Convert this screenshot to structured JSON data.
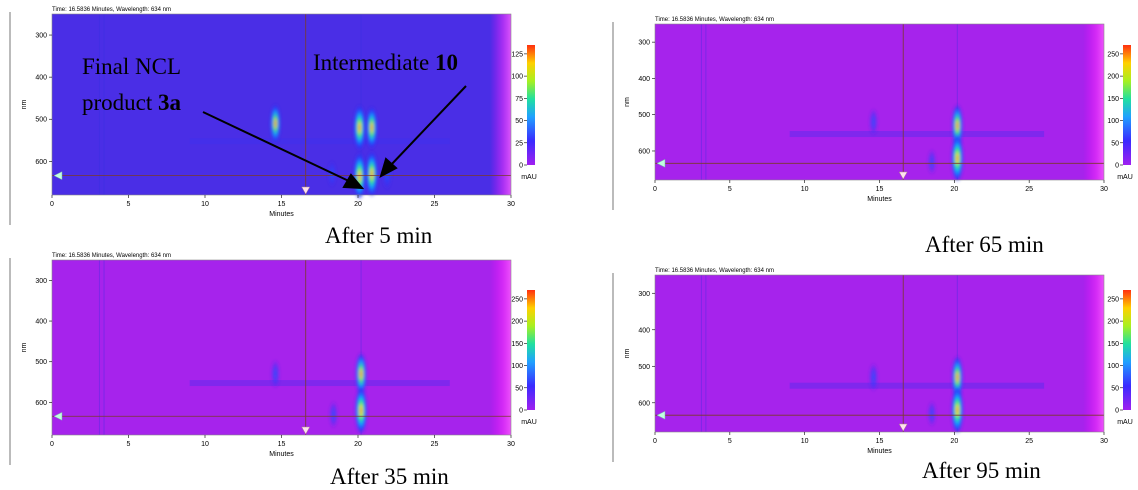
{
  "figure": {
    "header": "Time: 16.5836 Minutes, Wavelength: 634 nm",
    "xlabel": "Minutes",
    "ylabel": "nm",
    "unit_label": "mAU"
  },
  "annotations": {
    "final_label_line1": "Final NCL",
    "final_label_line2_text": "product ",
    "final_label_line2_bold": "3a",
    "intermediate_text": "Intermediate ",
    "intermediate_bold": "10"
  },
  "chart_data": [
    {
      "type": "heatmap",
      "caption": "After 5 min",
      "header": "Time: 16.5836 Minutes, Wavelength: 634 nm",
      "xlabel": "Minutes",
      "ylabel": "nm",
      "xlim": [
        0,
        30
      ],
      "ylim": [
        250,
        680
      ],
      "x_ticks": [
        0,
        5,
        10,
        15,
        20,
        25,
        30
      ],
      "y_ticks": [
        300,
        400,
        500,
        600
      ],
      "cursor_time_min": 16.5836,
      "cursor_wavelength_nm": 634,
      "colorbar_ticks": [
        0,
        25,
        50,
        75,
        100,
        125
      ],
      "colorbar_unit": "mAU",
      "background": "#4a2ee6",
      "peaks": [
        {
          "time": 14.6,
          "nm": 510,
          "intensity": 0.75
        },
        {
          "time": 20.1,
          "nm": 520,
          "intensity": 0.95
        },
        {
          "time": 20.1,
          "nm": 635,
          "intensity": 1.0
        },
        {
          "time": 20.9,
          "nm": 520,
          "intensity": 0.85
        },
        {
          "time": 20.9,
          "nm": 630,
          "intensity": 0.95
        },
        {
          "time": 21.9,
          "nm": 630,
          "intensity": 0.5
        },
        {
          "time": 18.3,
          "nm": 630,
          "intensity": 0.35
        }
      ]
    },
    {
      "type": "heatmap",
      "caption": "After 65 min",
      "header": "Time: 16.5836 Minutes, Wavelength: 634 nm",
      "xlabel": "Minutes",
      "ylabel": "nm",
      "xlim": [
        0,
        30
      ],
      "ylim": [
        250,
        680
      ],
      "x_ticks": [
        0,
        5,
        10,
        15,
        20,
        25,
        30
      ],
      "y_ticks": [
        300,
        400,
        500,
        600
      ],
      "cursor_time_min": 16.5836,
      "cursor_wavelength_nm": 634,
      "colorbar_ticks": [
        0,
        50,
        100,
        150,
        200,
        250
      ],
      "colorbar_unit": "mAU",
      "background": "#a623ec",
      "peaks": [
        {
          "time": 14.6,
          "nm": 520,
          "intensity": 0.35
        },
        {
          "time": 20.2,
          "nm": 530,
          "intensity": 0.85
        },
        {
          "time": 20.2,
          "nm": 620,
          "intensity": 1.0
        },
        {
          "time": 18.5,
          "nm": 630,
          "intensity": 0.3
        }
      ]
    },
    {
      "type": "heatmap",
      "caption": "After 35 min",
      "header": "Time: 16.5836 Minutes, Wavelength: 634 nm",
      "xlabel": "Minutes",
      "ylabel": "nm",
      "xlim": [
        0,
        30
      ],
      "ylim": [
        250,
        680
      ],
      "x_ticks": [
        0,
        5,
        10,
        15,
        20,
        25,
        30
      ],
      "y_ticks": [
        300,
        400,
        500,
        600
      ],
      "cursor_time_min": 16.5836,
      "cursor_wavelength_nm": 634,
      "colorbar_ticks": [
        0,
        50,
        100,
        150,
        200,
        250
      ],
      "colorbar_unit": "mAU",
      "background": "#a623ec",
      "peaks": [
        {
          "time": 14.6,
          "nm": 530,
          "intensity": 0.4
        },
        {
          "time": 20.2,
          "nm": 530,
          "intensity": 0.85
        },
        {
          "time": 20.2,
          "nm": 620,
          "intensity": 1.0
        },
        {
          "time": 18.4,
          "nm": 630,
          "intensity": 0.35
        }
      ]
    },
    {
      "type": "heatmap",
      "caption": "After 95 min",
      "header": "Time: 16.5836 Minutes, Wavelength: 634 nm",
      "xlabel": "Minutes",
      "ylabel": "nm",
      "xlim": [
        0,
        30
      ],
      "ylim": [
        250,
        680
      ],
      "x_ticks": [
        0,
        5,
        10,
        15,
        20,
        25,
        30
      ],
      "y_ticks": [
        300,
        400,
        500,
        600
      ],
      "cursor_time_min": 16.5836,
      "cursor_wavelength_nm": 634,
      "colorbar_ticks": [
        0,
        50,
        100,
        150,
        200,
        250
      ],
      "colorbar_unit": "mAU",
      "background": "#a623ec",
      "peaks": [
        {
          "time": 14.6,
          "nm": 530,
          "intensity": 0.4
        },
        {
          "time": 20.2,
          "nm": 530,
          "intensity": 0.85
        },
        {
          "time": 20.2,
          "nm": 620,
          "intensity": 1.0
        },
        {
          "time": 18.5,
          "nm": 630,
          "intensity": 0.3
        }
      ]
    }
  ]
}
